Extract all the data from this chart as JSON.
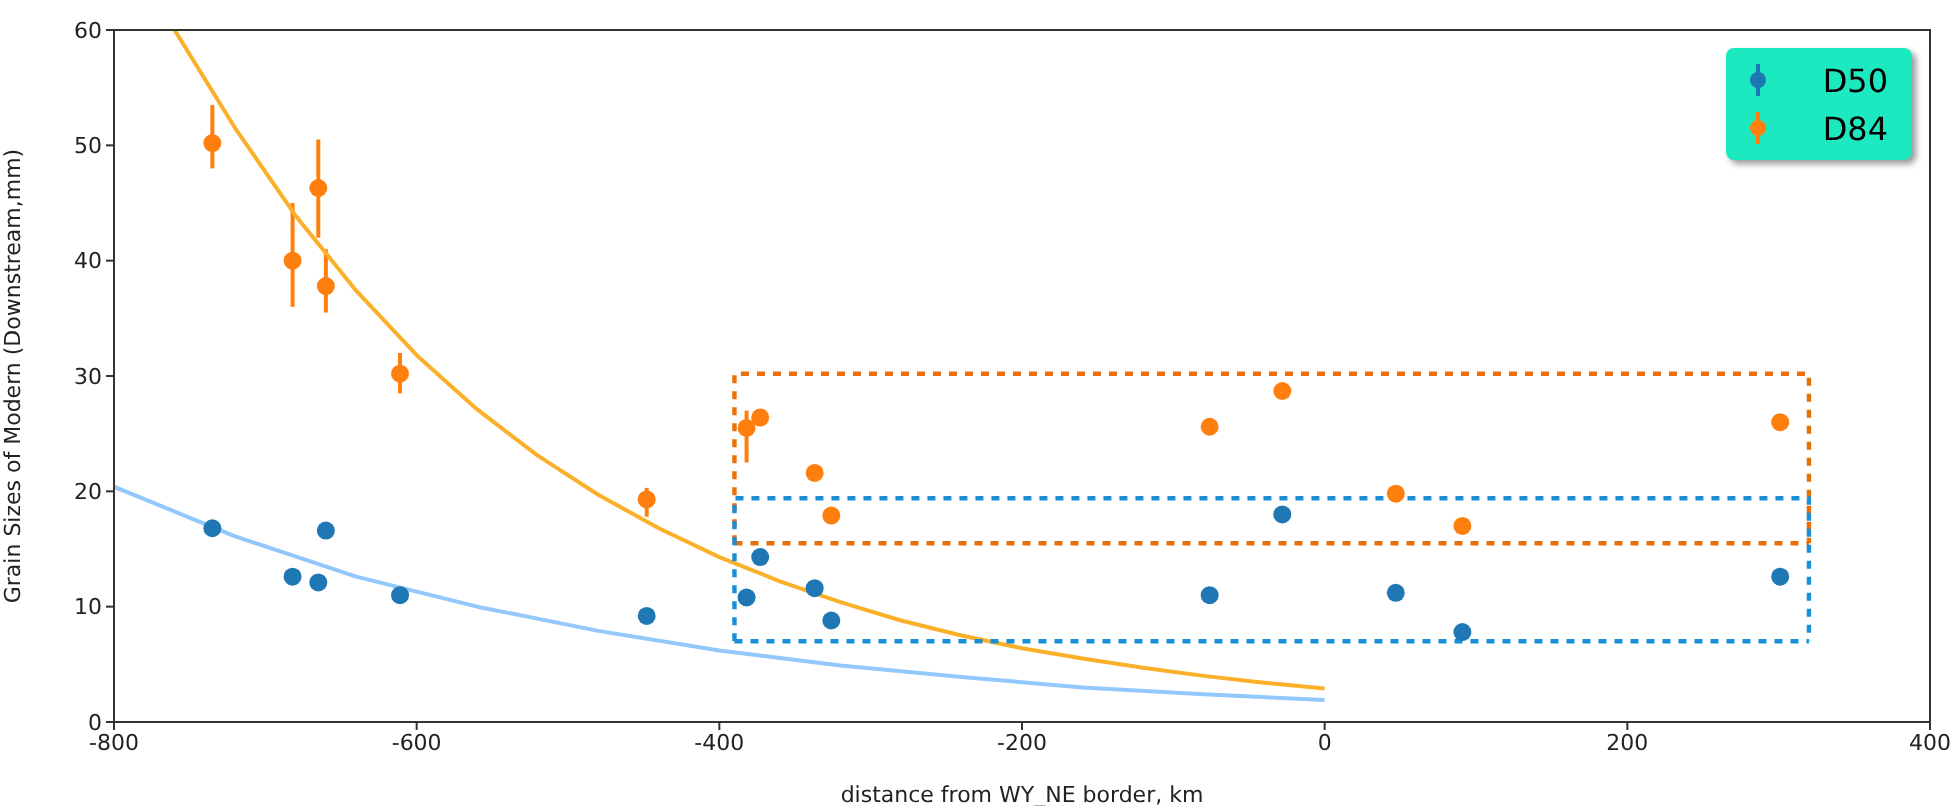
{
  "chart_data": {
    "type": "scatter",
    "xlabel": "distance from WY_NE border, km",
    "ylabel": "Grain Sizes of Modern (Downstream,mm)",
    "xlim": [
      -800,
      400
    ],
    "xticks": [
      -800,
      -600,
      -400,
      -200,
      0,
      200,
      400
    ],
    "ylim": [
      0,
      60
    ],
    "yticks": [
      0,
      10,
      20,
      30,
      40,
      50,
      60
    ],
    "grid": false,
    "legend": "top right",
    "series": [
      {
        "name": "D50",
        "marker": "circle",
        "color": "#1f77b4",
        "x": [
          -735,
          -682,
          -665,
          -660,
          -611,
          -448,
          -382,
          -373,
          -337,
          -326,
          -76,
          -28,
          47,
          91,
          301
        ],
        "values": [
          16.8,
          12.6,
          12.1,
          16.6,
          11,
          9.2,
          10.8,
          14.3,
          11.6,
          8.8,
          11,
          18,
          11.2,
          7.8,
          12.6
        ]
      },
      {
        "name": "D84",
        "marker": "circle",
        "color": "#ff7f0e",
        "x": [
          -735,
          -682,
          -665,
          -660,
          -611,
          -448,
          -382,
          -373,
          -337,
          -326,
          -76,
          -28,
          47,
          91,
          301
        ],
        "values": [
          50.2,
          40,
          46.3,
          37.8,
          30.2,
          19.3,
          25.5,
          26.4,
          21.6,
          17.9,
          25.6,
          28.7,
          19.8,
          17,
          26
        ],
        "errors": [
          [
            48,
            53.5
          ],
          [
            36,
            45
          ],
          [
            42,
            50.5
          ],
          [
            35.5,
            41
          ],
          [
            28.5,
            32
          ],
          [
            17.8,
            20.3
          ],
          [
            22.5,
            27
          ],
          null,
          null,
          null,
          null,
          null,
          null,
          null,
          null
        ]
      },
      {
        "type": "line",
        "color": "#fbb02a",
        "line_style": "solid",
        "x": [
          -760,
          -720,
          -680,
          -640,
          -600,
          -560,
          -520,
          -480,
          -440,
          -400,
          -360,
          -320,
          -280,
          -240,
          -200,
          -160,
          -120,
          -80,
          -40,
          0
        ],
        "values": [
          60,
          51.5,
          43.9,
          37.4,
          31.8,
          27.1,
          23.1,
          19.7,
          16.8,
          14.3,
          12.2,
          10.4,
          8.8,
          7.5,
          6.4,
          5.5,
          4.7,
          4,
          3.4,
          2.9
        ]
      },
      {
        "type": "line",
        "color": "#92c8fb",
        "line_style": "solid",
        "x": [
          -800,
          -720,
          -640,
          -560,
          -480,
          -400,
          -320,
          -240,
          -160,
          -80,
          0
        ],
        "values": [
          20.4,
          16.1,
          12.6,
          10,
          7.9,
          6.2,
          4.9,
          3.9,
          3,
          2.4,
          1.9
        ]
      },
      {
        "type": "line",
        "color": "#e8700a",
        "line_style": "dashed",
        "x": [
          -390,
          -390,
          320,
          320
        ],
        "values": [
          15.5,
          30.2,
          30.2,
          15.5
        ]
      },
      {
        "type": "line",
        "color": "#e8700a",
        "line_style": "dashed",
        "x": [
          -390,
          320
        ],
        "values": [
          15.5,
          15.5
        ]
      },
      {
        "type": "line",
        "color": "#1a8fd6",
        "line_style": "dashed",
        "x": [
          -390,
          -390,
          320,
          320
        ],
        "values": [
          7,
          19.4,
          19.4,
          7
        ]
      },
      {
        "type": "line",
        "color": "#1a8fd6",
        "line_style": "dashed",
        "x": [
          -390,
          320
        ],
        "values": [
          7,
          7
        ]
      }
    ]
  }
}
